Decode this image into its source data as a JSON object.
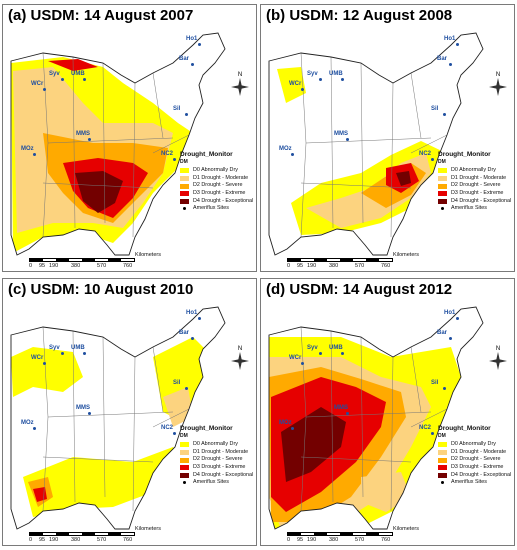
{
  "panels": [
    {
      "id": "a",
      "title": "(a) USDM: 14 August 2007"
    },
    {
      "id": "b",
      "title": "(b) USDM: 12 August 2008"
    },
    {
      "id": "c",
      "title": "(c) USDM: 10 August 2010"
    },
    {
      "id": "d",
      "title": "(d) USDM: 14 August 2012"
    }
  ],
  "legend": {
    "title": "Drought_Monitor",
    "subtitle": "DM",
    "items": [
      {
        "label": "D0 Abnormally Dry",
        "color": "#ffff00"
      },
      {
        "label": "D1 Drought - Moderate",
        "color": "#fcd37f"
      },
      {
        "label": "D2 Drought - Severe",
        "color": "#ffaa00"
      },
      {
        "label": "D3 Drought - Extreme",
        "color": "#e60000"
      },
      {
        "label": "D4 Drought - Exceptional",
        "color": "#730000"
      }
    ],
    "sites_label": "Ameriflux Sites"
  },
  "scale": {
    "unit": "Kilometers",
    "ticks": [
      "0",
      "95",
      "190",
      "380",
      "570",
      "760"
    ]
  },
  "compass": {
    "n": "N"
  },
  "sites": [
    "Ho1",
    "Bar",
    "WCr",
    "Syv",
    "UMB",
    "Sil",
    "MOz",
    "MMS",
    "NC2"
  ]
}
